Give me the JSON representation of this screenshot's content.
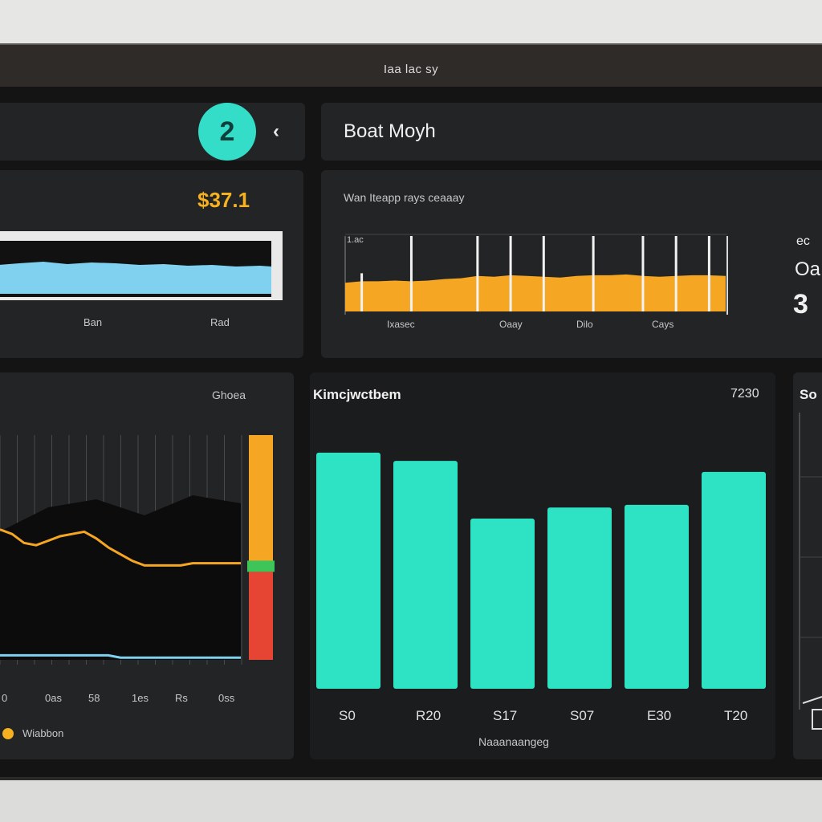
{
  "window": {
    "title": "Iaa lac sy"
  },
  "header": {
    "avatar_glyph": "2",
    "title": "Boat Moyh",
    "back_icon": "chevron-left-icon"
  },
  "kpi_panel": {
    "value": "$37.1",
    "axis_labels": [
      "Ban",
      "Rad"
    ]
  },
  "area_panel": {
    "caption": "Wan Iteapp rays ceaaay",
    "y_tick": "1.ac",
    "x_labels": [
      "Ixasec",
      "Oaay",
      "Dilo",
      "Cays"
    ]
  },
  "right_stats": {
    "line1": "ec",
    "line2": "Oa",
    "line3": "3"
  },
  "line_panel": {
    "title": "Ghoea",
    "x_labels": [
      "0",
      "0as",
      "58",
      "1es",
      "Rs",
      "0ss"
    ],
    "legend": "Wiabbon"
  },
  "bar_panel": {
    "title": "Kimcjwctbem",
    "corner_value": "7230",
    "footer": "Naaanaangeg"
  },
  "side_panel": {
    "label": "So"
  },
  "colors": {
    "teal": "#2ee3c4",
    "orange": "#f5a623",
    "sky": "#7fd1ef",
    "red": "#e64533",
    "green": "#3ec55a",
    "panel": "#222426"
  },
  "chart_data": [
    {
      "type": "bar",
      "categories": [
        "S0",
        "R20",
        "S17",
        "S07",
        "E30",
        "T20"
      ],
      "values": [
        86,
        83,
        62,
        66,
        67,
        79
      ],
      "ylim": [
        0,
        100
      ],
      "title": "Kimcjwctbem",
      "xlabel": "Naaanaangeg",
      "ylabel": "",
      "grid": false,
      "legend": "none"
    },
    {
      "type": "area",
      "x": [
        0,
        1,
        2,
        3,
        4,
        5,
        6,
        7,
        8,
        9,
        10,
        11,
        12,
        13,
        14,
        15,
        16,
        17,
        18,
        19,
        20,
        21,
        22,
        23
      ],
      "y": [
        38,
        40,
        40,
        41,
        40,
        41,
        43,
        44,
        47,
        46,
        48,
        47,
        46,
        45,
        47,
        48,
        48,
        49,
        47,
        46,
        47,
        48,
        48,
        47
      ],
      "spikes_at": [
        1,
        4,
        8,
        10,
        12,
        15,
        18,
        20,
        22
      ],
      "spike_height": 100,
      "ylim": [
        0,
        100
      ],
      "title": "Wan Iteapp rays ceaaay",
      "x_tick_labels": [
        "Ixasec",
        "Oaay",
        "Dilo",
        "Cays"
      ]
    },
    {
      "type": "line",
      "x": [
        0,
        1,
        2,
        3,
        4,
        5,
        6,
        7,
        8,
        9,
        10,
        11,
        12,
        13,
        14,
        15,
        16,
        17,
        18,
        19,
        20
      ],
      "series": [
        {
          "y": [
            58,
            56,
            52,
            51,
            53,
            55,
            56,
            57,
            54,
            50,
            47,
            44,
            42,
            42,
            42,
            42,
            43,
            43,
            43,
            43,
            43
          ]
        },
        {
          "y": [
            2,
            2,
            2,
            2,
            2,
            2,
            2,
            2,
            2,
            2,
            1,
            1,
            1,
            1,
            1,
            1,
            1,
            1,
            1,
            1,
            1
          ]
        }
      ],
      "level_bar": {
        "orange_top": 100,
        "green": 42,
        "red_bottom": 0
      },
      "ylim": [
        0,
        100
      ],
      "title": "Ghoea",
      "x_tick_labels": [
        "0",
        "0as",
        "58",
        "1es",
        "Rs",
        "0ss"
      ]
    }
  ]
}
